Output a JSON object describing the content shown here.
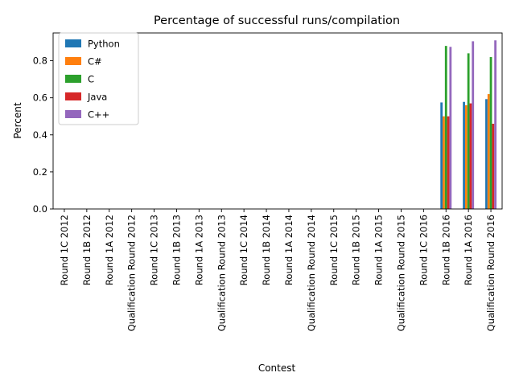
{
  "chart_data": {
    "type": "bar",
    "title": "Percentage of successful runs/compilation",
    "xlabel": "Contest",
    "ylabel": "Percent",
    "ylim": [
      0,
      0.95
    ],
    "yticks": [
      0.0,
      0.2,
      0.4,
      0.6,
      0.8
    ],
    "ytick_labels": [
      "0.0",
      "0.2",
      "0.4",
      "0.6",
      "0.8"
    ],
    "grid": false,
    "legend_position": "top-left",
    "categories": [
      "Round 1C 2012",
      "Round 1B 2012",
      "Round 1A 2012",
      "Qualification Round 2012",
      "Round 1C 2013",
      "Round 1B 2013",
      "Round 1A 2013",
      "Qualification Round 2013",
      "Round 1C 2014",
      "Round 1B 2014",
      "Round 1A 2014",
      "Qualification Round 2014",
      "Round 1C 2015",
      "Round 1B 2015",
      "Round 1A 2015",
      "Qualification Round 2015",
      "Round 1C 2016",
      "Round 1B 2016",
      "Round 1A 2016",
      "Qualification Round 2016"
    ],
    "series": [
      {
        "name": "Python",
        "color": "#1f77b4",
        "values": [
          0,
          0,
          0,
          0,
          0,
          0,
          0,
          0,
          0,
          0,
          0,
          0,
          0,
          0,
          0,
          0,
          0,
          0.575,
          0.578,
          0.593
        ]
      },
      {
        "name": "C#",
        "color": "#ff7f0e",
        "values": [
          0,
          0,
          0,
          0,
          0,
          0,
          0,
          0,
          0,
          0,
          0,
          0,
          0,
          0,
          0,
          0,
          0,
          0.5,
          0.56,
          0.62
        ]
      },
      {
        "name": "C",
        "color": "#2ca02c",
        "values": [
          0,
          0,
          0,
          0,
          0,
          0,
          0,
          0,
          0,
          0,
          0,
          0,
          0,
          0,
          0,
          0,
          0,
          0.88,
          0.84,
          0.82
        ]
      },
      {
        "name": "Java",
        "color": "#d62728",
        "values": [
          0,
          0,
          0,
          0,
          0,
          0,
          0,
          0,
          0,
          0,
          0,
          0,
          0,
          0,
          0,
          0,
          0,
          0.5,
          0.57,
          0.46
        ]
      },
      {
        "name": "C++",
        "color": "#9467bd",
        "values": [
          0,
          0,
          0,
          0,
          0,
          0,
          0,
          0,
          0,
          0,
          0,
          0,
          0,
          0,
          0,
          0,
          0,
          0.875,
          0.905,
          0.91
        ]
      }
    ]
  }
}
